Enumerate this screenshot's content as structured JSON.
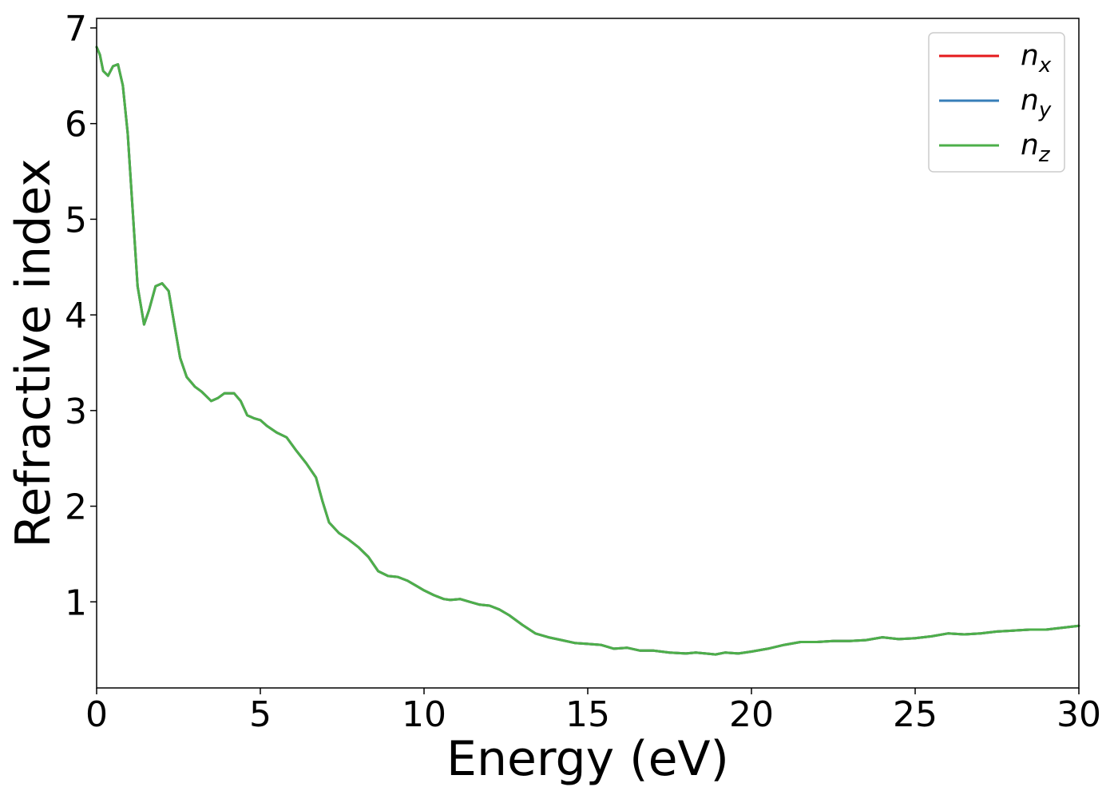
{
  "chart_data": {
    "type": "line",
    "xlabel": "Energy (eV)",
    "ylabel": "Refractive index",
    "xlim": [
      0,
      30
    ],
    "ylim": [
      0.1,
      7.1
    ],
    "x_ticks": [
      0,
      5,
      10,
      15,
      20,
      25,
      30
    ],
    "x_tick_labels": [
      "0",
      "5",
      "10",
      "15",
      "20",
      "25",
      "30"
    ],
    "y_ticks": [
      1,
      2,
      3,
      4,
      5,
      6,
      7
    ],
    "y_tick_labels": [
      "1",
      "2",
      "3",
      "4",
      "5",
      "6",
      "7"
    ],
    "grid": false,
    "legend_position": "top-right",
    "x": [
      0,
      0.1,
      0.2,
      0.35,
      0.5,
      0.65,
      0.8,
      0.95,
      1.1,
      1.25,
      1.45,
      1.6,
      1.8,
      2.0,
      2.2,
      2.4,
      2.55,
      2.75,
      3.0,
      3.2,
      3.5,
      3.7,
      3.9,
      4.2,
      4.4,
      4.6,
      4.8,
      5.0,
      5.2,
      5.5,
      5.8,
      6.1,
      6.4,
      6.7,
      6.9,
      7.1,
      7.4,
      7.7,
      8.0,
      8.3,
      8.6,
      8.9,
      9.2,
      9.5,
      9.8,
      10.0,
      10.3,
      10.6,
      10.8,
      11.1,
      11.4,
      11.7,
      12.0,
      12.3,
      12.6,
      13.0,
      13.4,
      13.8,
      14.2,
      14.6,
      15.0,
      15.4,
      15.8,
      16.2,
      16.6,
      17.0,
      17.5,
      18.0,
      18.3,
      18.6,
      18.9,
      19.2,
      19.6,
      20.0,
      20.5,
      21.0,
      21.5,
      22.0,
      22.5,
      23.0,
      23.5,
      24.0,
      24.5,
      25.0,
      25.5,
      26.0,
      26.5,
      27.0,
      27.5,
      28.0,
      28.5,
      29.0,
      29.5,
      30.0
    ],
    "series": [
      {
        "name": "n_x",
        "color": "#e41a1c",
        "values": [
          6.8,
          6.72,
          6.55,
          6.5,
          6.6,
          6.62,
          6.4,
          5.9,
          5.1,
          4.3,
          3.9,
          4.05,
          4.3,
          4.33,
          4.25,
          3.85,
          3.55,
          3.35,
          3.25,
          3.2,
          3.1,
          3.13,
          3.18,
          3.18,
          3.1,
          2.95,
          2.92,
          2.9,
          2.84,
          2.77,
          2.72,
          2.58,
          2.45,
          2.3,
          2.05,
          1.83,
          1.72,
          1.65,
          1.57,
          1.47,
          1.32,
          1.27,
          1.26,
          1.22,
          1.16,
          1.12,
          1.07,
          1.03,
          1.02,
          1.03,
          1.0,
          0.97,
          0.96,
          0.92,
          0.86,
          0.76,
          0.67,
          0.63,
          0.6,
          0.57,
          0.56,
          0.55,
          0.51,
          0.52,
          0.49,
          0.49,
          0.47,
          0.46,
          0.47,
          0.46,
          0.45,
          0.47,
          0.46,
          0.48,
          0.51,
          0.55,
          0.58,
          0.58,
          0.59,
          0.59,
          0.6,
          0.63,
          0.61,
          0.62,
          0.64,
          0.67,
          0.66,
          0.67,
          0.69,
          0.7,
          0.71,
          0.71,
          0.73,
          0.75
        ]
      },
      {
        "name": "n_y",
        "color": "#377eb8",
        "values": [
          6.8,
          6.72,
          6.55,
          6.5,
          6.6,
          6.62,
          6.4,
          5.9,
          5.1,
          4.3,
          3.9,
          4.05,
          4.3,
          4.33,
          4.25,
          3.85,
          3.55,
          3.35,
          3.25,
          3.2,
          3.1,
          3.13,
          3.18,
          3.18,
          3.1,
          2.95,
          2.92,
          2.9,
          2.84,
          2.77,
          2.72,
          2.58,
          2.45,
          2.3,
          2.05,
          1.83,
          1.72,
          1.65,
          1.57,
          1.47,
          1.32,
          1.27,
          1.26,
          1.22,
          1.16,
          1.12,
          1.07,
          1.03,
          1.02,
          1.03,
          1.0,
          0.97,
          0.96,
          0.92,
          0.86,
          0.76,
          0.67,
          0.63,
          0.6,
          0.57,
          0.56,
          0.55,
          0.51,
          0.52,
          0.49,
          0.49,
          0.47,
          0.46,
          0.47,
          0.46,
          0.45,
          0.47,
          0.46,
          0.48,
          0.51,
          0.55,
          0.58,
          0.58,
          0.59,
          0.59,
          0.6,
          0.63,
          0.61,
          0.62,
          0.64,
          0.67,
          0.66,
          0.67,
          0.69,
          0.7,
          0.71,
          0.71,
          0.73,
          0.75
        ]
      },
      {
        "name": "n_z",
        "color": "#4daf4a",
        "values": [
          6.8,
          6.72,
          6.55,
          6.5,
          6.6,
          6.62,
          6.4,
          5.9,
          5.1,
          4.3,
          3.9,
          4.05,
          4.3,
          4.33,
          4.25,
          3.85,
          3.55,
          3.35,
          3.25,
          3.2,
          3.1,
          3.13,
          3.18,
          3.18,
          3.1,
          2.95,
          2.92,
          2.9,
          2.84,
          2.77,
          2.72,
          2.58,
          2.45,
          2.3,
          2.05,
          1.83,
          1.72,
          1.65,
          1.57,
          1.47,
          1.32,
          1.27,
          1.26,
          1.22,
          1.16,
          1.12,
          1.07,
          1.03,
          1.02,
          1.03,
          1.0,
          0.97,
          0.96,
          0.92,
          0.86,
          0.76,
          0.67,
          0.63,
          0.6,
          0.57,
          0.56,
          0.55,
          0.51,
          0.52,
          0.49,
          0.49,
          0.47,
          0.46,
          0.47,
          0.46,
          0.45,
          0.47,
          0.46,
          0.48,
          0.51,
          0.55,
          0.58,
          0.58,
          0.59,
          0.59,
          0.6,
          0.63,
          0.61,
          0.62,
          0.64,
          0.67,
          0.66,
          0.67,
          0.69,
          0.7,
          0.71,
          0.71,
          0.73,
          0.75
        ]
      }
    ],
    "legend": [
      {
        "base": "n",
        "sub": "x",
        "color": "#e41a1c"
      },
      {
        "base": "n",
        "sub": "y",
        "color": "#377eb8"
      },
      {
        "base": "n",
        "sub": "z",
        "color": "#4daf4a"
      }
    ]
  }
}
